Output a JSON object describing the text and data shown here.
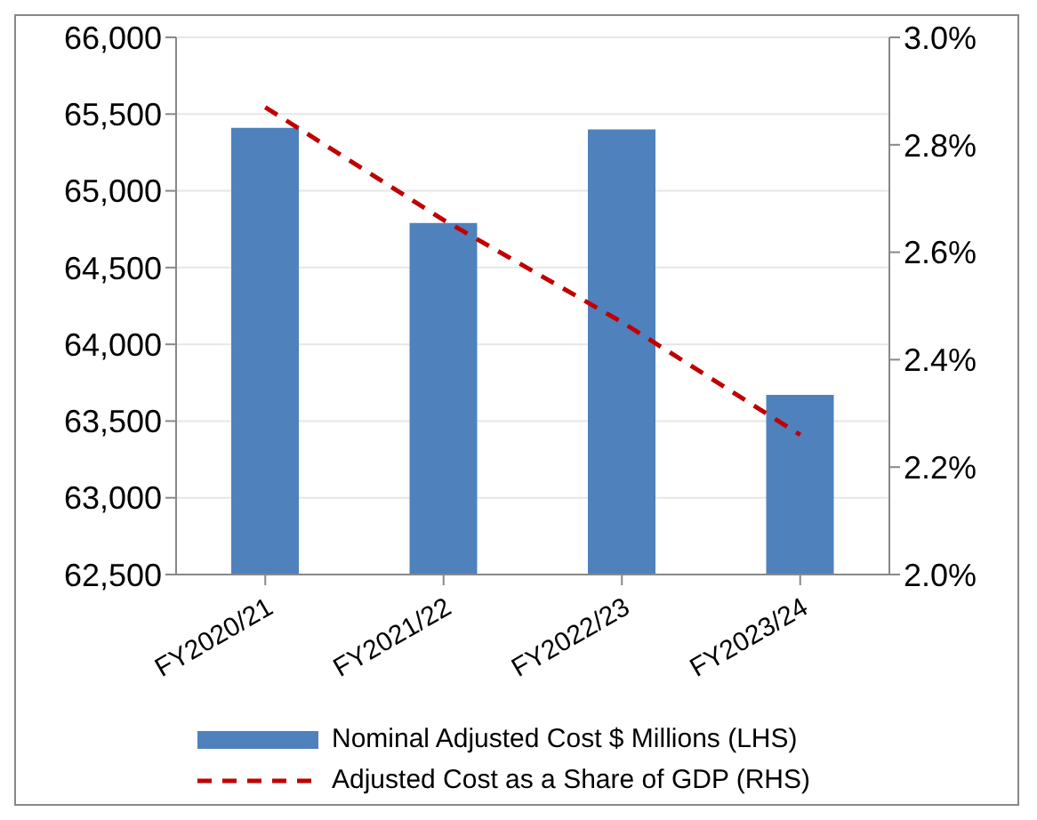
{
  "chart_data": {
    "type": "bar",
    "categories": [
      "FY2020/21",
      "FY2021/22",
      "FY2022/23",
      "FY2023/24"
    ],
    "series": [
      {
        "name": "Nominal Adjusted Cost $ Millions (LHS)",
        "color": "#4f81bd",
        "values": [
          65410,
          64790,
          65400,
          63670
        ]
      },
      {
        "name": "Adjusted Cost as a Share of GDP (RHS)",
        "type": "line",
        "axis": "y2",
        "color": "#c00000",
        "line_style": "dashed",
        "marker": "none",
        "values": [
          2.87,
          2.66,
          2.47,
          2.26
        ]
      }
    ],
    "ylim": [
      62500,
      66000
    ],
    "yticks": [
      {
        "value": 62500,
        "label": "62,500"
      },
      {
        "value": 63000,
        "label": "63,000"
      },
      {
        "value": 63500,
        "label": "63,500"
      },
      {
        "value": 64000,
        "label": "64,000"
      },
      {
        "value": 64500,
        "label": "64,500"
      },
      {
        "value": 65000,
        "label": "65,000"
      },
      {
        "value": 65500,
        "label": "65,500"
      },
      {
        "value": 66000,
        "label": "66,000"
      }
    ],
    "y2lim": [
      2.0,
      3.0
    ],
    "y2ticks": [
      {
        "value": 2.0,
        "label": "2.0%"
      },
      {
        "value": 2.2,
        "label": "2.2%"
      },
      {
        "value": 2.4,
        "label": "2.4%"
      },
      {
        "value": 2.6,
        "label": "2.6%"
      },
      {
        "value": 2.8,
        "label": "2.8%"
      },
      {
        "value": 3.0,
        "label": "3.0%"
      }
    ],
    "grid": "y",
    "legend": "bottom"
  }
}
